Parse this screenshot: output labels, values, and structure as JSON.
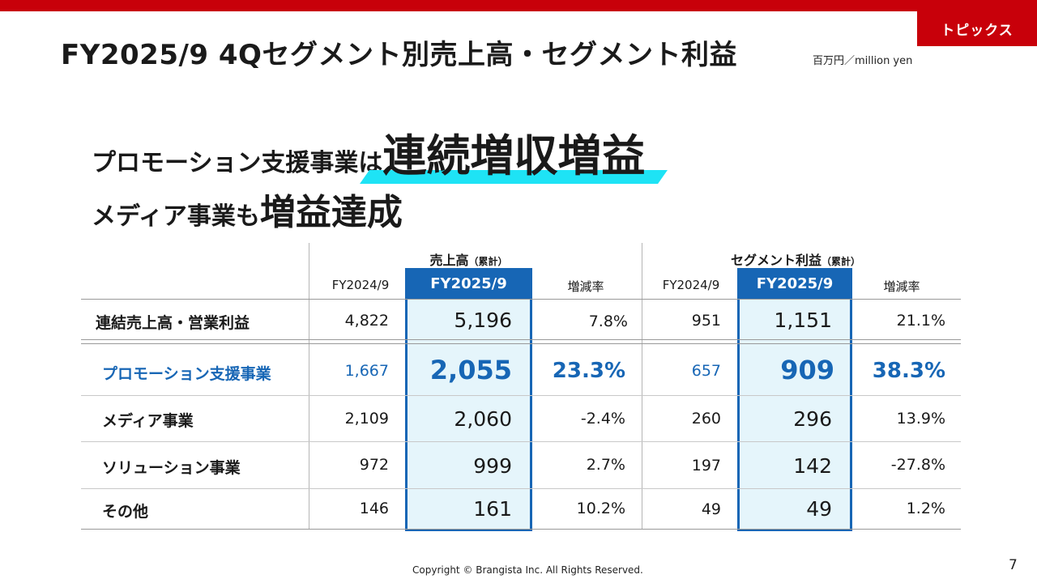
{
  "header": {
    "badge": "トピックス",
    "title": "FY2025/9 4Qセグメント別売上高・セグメント利益",
    "unit": "百万円／million yen"
  },
  "headline": {
    "line1_prefix": "プロモーション支援事業は",
    "line1_highlight": "連続増収増益",
    "line2_prefix": "メディア事業も",
    "line2_highlight": "増益達成"
  },
  "table": {
    "group_sales": "売上高",
    "group_sales_note": "（累計）",
    "group_profit": "セグメント利益",
    "group_profit_note": "（累計）",
    "col_fy24": "FY2024/9",
    "col_fy25": "FY2025/9",
    "col_rate": "増減率",
    "rows": [
      {
        "label": "連結売上高・営業利益",
        "s24": "4,822",
        "s25": "5,196",
        "sr": "7.8%",
        "p24": "951",
        "p25": "1,151",
        "pr": "21.1%"
      },
      {
        "label": "プロモーション支援事業",
        "s24": "1,667",
        "s25": "2,055",
        "sr": "23.3%",
        "p24": "657",
        "p25": "909",
        "pr": "38.3%"
      },
      {
        "label": "メディア事業",
        "s24": "2,109",
        "s25": "2,060",
        "sr": "-2.4%",
        "p24": "260",
        "p25": "296",
        "pr": "13.9%"
      },
      {
        "label": "ソリューション事業",
        "s24": "972",
        "s25": "999",
        "sr": "2.7%",
        "p24": "197",
        "p25": "142",
        "pr": "-27.8%"
      },
      {
        "label": "その他",
        "s24": "146",
        "s25": "161",
        "sr": "10.2%",
        "p24": "49",
        "p25": "49",
        "pr": "1.2%"
      }
    ]
  },
  "footer": {
    "copyright": "Copyright © Brangista Inc. All Rights Reserved.",
    "page": "7"
  },
  "colors": {
    "brand_red": "#c8000a",
    "highlight_blue": "#1766b5",
    "highlight_fill": "#e5f5fb",
    "marker_cyan": "#1ee3f5"
  }
}
